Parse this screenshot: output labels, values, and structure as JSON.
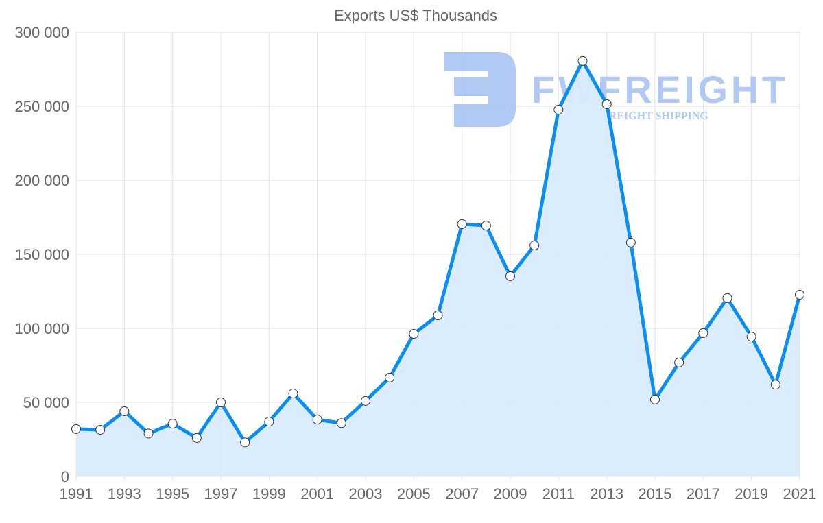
{
  "chart_data": {
    "type": "area",
    "title": "Exports US$ Thousands",
    "xlabel": "",
    "ylabel": "",
    "ylim": [
      0,
      300000
    ],
    "yticks": [
      0,
      50000,
      100000,
      150000,
      200000,
      250000,
      300000
    ],
    "ytick_labels": [
      "0",
      "50 000",
      "100 000",
      "150 000",
      "200 000",
      "250 000",
      "300 000"
    ],
    "xtick_labels": [
      "1991",
      "1993",
      "1995",
      "1997",
      "1999",
      "2001",
      "2003",
      "2005",
      "2007",
      "2009",
      "2011",
      "2013",
      "2015",
      "2017",
      "2019",
      "2021"
    ],
    "grid": true,
    "x": [
      1991,
      1992,
      1993,
      1994,
      1995,
      1996,
      1997,
      1998,
      1999,
      2000,
      2001,
      2002,
      2003,
      2004,
      2005,
      2006,
      2007,
      2008,
      2009,
      2010,
      2011,
      2012,
      2013,
      2014,
      2015,
      2016,
      2017,
      2018,
      2019,
      2020,
      2021
    ],
    "series": [
      {
        "name": "Exports US$ Thousands",
        "values": [
          32000,
          31500,
          44000,
          29000,
          35600,
          26000,
          50000,
          23000,
          37000,
          56000,
          38400,
          36000,
          51000,
          66700,
          96300,
          108800,
          170400,
          169400,
          135200,
          156000,
          247700,
          280600,
          251400,
          157900,
          51900,
          76900,
          96800,
          120400,
          94400,
          62000,
          122700
        ]
      }
    ],
    "colors": {
      "line": "#0a8ef0",
      "fill": "#d9ebfc",
      "grid": "#e3e3e3",
      "watermark": "#a9c4f2"
    }
  },
  "watermark": {
    "brand": "FWFREIGHT",
    "tagline": "FREIGHT SHIPPING"
  }
}
